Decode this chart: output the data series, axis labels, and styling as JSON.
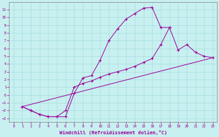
{
  "xlabel": "Windchill (Refroidissement éolien,°C)",
  "bg_color": "#c8f0f0",
  "line_color": "#990099",
  "xlim": [
    -0.5,
    23.5
  ],
  "ylim": [
    -3.5,
    12
  ],
  "xticks": [
    0,
    1,
    2,
    3,
    4,
    5,
    6,
    7,
    8,
    9,
    10,
    11,
    12,
    13,
    14,
    15,
    16,
    17,
    18,
    19,
    20,
    21,
    22,
    23
  ],
  "yticks": [
    -3,
    -2,
    -1,
    0,
    1,
    2,
    3,
    4,
    5,
    6,
    7,
    8,
    9,
    10,
    11
  ],
  "line1_x": [
    1,
    2,
    3,
    4,
    5,
    6,
    7,
    8,
    9,
    10,
    11,
    12,
    13,
    14,
    15,
    16,
    17,
    18
  ],
  "line1_y": [
    -1.5,
    -2.0,
    -2.5,
    -2.8,
    -2.8,
    -2.8,
    0.2,
    2.2,
    2.5,
    4.5,
    7.0,
    8.5,
    9.8,
    10.5,
    11.2,
    11.3,
    8.7,
    8.7
  ],
  "line2_x": [
    1,
    2,
    3,
    4,
    5,
    6,
    7,
    8,
    9,
    10,
    11,
    12,
    13,
    14,
    15,
    16,
    17,
    18,
    19,
    20,
    21,
    22,
    23
  ],
  "line2_y": [
    -1.5,
    -2.0,
    -2.5,
    -2.8,
    -2.8,
    -2.0,
    1.0,
    1.5,
    1.8,
    2.3,
    2.7,
    3.0,
    3.3,
    3.7,
    4.2,
    4.7,
    6.5,
    8.7,
    5.8,
    6.5,
    5.5,
    5.0,
    4.8
  ],
  "line3_x": [
    1,
    23
  ],
  "line3_y": [
    -1.5,
    4.8
  ]
}
